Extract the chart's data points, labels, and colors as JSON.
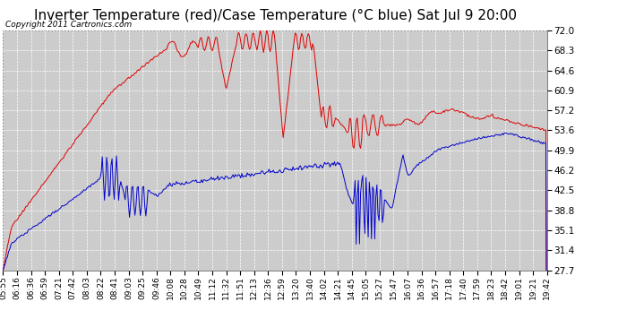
{
  "title": "Inverter Temperature (red)/Case Temperature (°C blue) Sat Jul 9 20:00",
  "copyright": "Copyright 2011 Cartronics.com",
  "ylim": [
    27.7,
    72.0
  ],
  "yticks": [
    27.7,
    31.4,
    35.1,
    38.8,
    42.5,
    46.2,
    49.9,
    53.6,
    57.2,
    60.9,
    64.6,
    68.3,
    72.0
  ],
  "xtick_labels": [
    "05:55",
    "06:16",
    "06:36",
    "06:59",
    "07:21",
    "07:42",
    "08:03",
    "08:22",
    "08:41",
    "09:03",
    "09:25",
    "09:46",
    "10:08",
    "10:28",
    "10:49",
    "11:12",
    "11:32",
    "11:51",
    "12:13",
    "12:36",
    "12:59",
    "13:20",
    "13:40",
    "14:02",
    "14:21",
    "14:45",
    "15:05",
    "15:27",
    "15:47",
    "16:07",
    "16:36",
    "16:57",
    "17:18",
    "17:40",
    "17:59",
    "18:23",
    "18:42",
    "19:01",
    "19:21",
    "19:42"
  ],
  "fig_bg_color": "#ffffff",
  "plot_bg_color": "#cccccc",
  "grid_color": "#ffffff",
  "red_color": "#dd0000",
  "blue_color": "#0000cc",
  "title_fontsize": 11,
  "copyright_fontsize": 6.5,
  "tick_fontsize": 6.5,
  "ytick_fontsize": 7.5
}
